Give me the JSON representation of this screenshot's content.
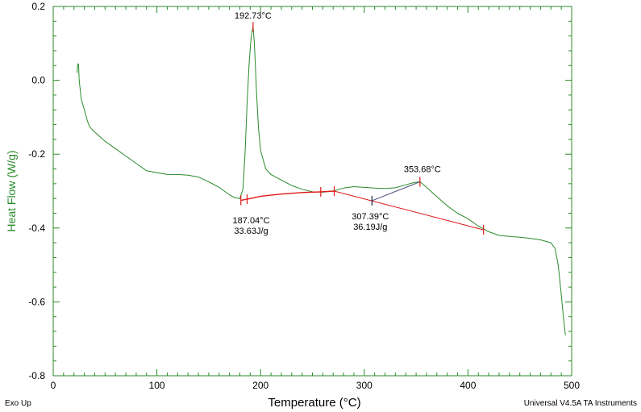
{
  "chart_data": {
    "type": "line",
    "title": "",
    "xlabel": "Temperature (°C)",
    "ylabel": "Heat Flow (W/g)",
    "xlim": [
      0,
      500
    ],
    "ylim": [
      -0.8,
      0.2
    ],
    "xticks": [
      0,
      100,
      200,
      300,
      400,
      500
    ],
    "yticks": [
      -0.8,
      -0.6,
      -0.4,
      -0.2,
      0.0,
      0.2
    ],
    "xtick_labels": [
      "0",
      "100",
      "200",
      "300",
      "400",
      "500"
    ],
    "ytick_labels": [
      "-0.8",
      "-0.6",
      "-0.4",
      "-0.2",
      "0.0",
      "0.2"
    ],
    "grid": false,
    "colors": {
      "curve": "#2a8a2a",
      "integration": "#e01818",
      "ylabel": "#2a8a2a",
      "marker": "#e01818"
    },
    "series": [
      {
        "name": "Heat Flow",
        "x": [
          23,
          23.5,
          24,
          24.5,
          25,
          27,
          30,
          33,
          35,
          38,
          42,
          50,
          60,
          70,
          80,
          90,
          100,
          110,
          120,
          130,
          140,
          150,
          160,
          170,
          175,
          180,
          183,
          185,
          187,
          189,
          191,
          192.73,
          194,
          196,
          198,
          200,
          205,
          210,
          220,
          230,
          240,
          250,
          260,
          270,
          280,
          290,
          300,
          310,
          320,
          330,
          340,
          345,
          350,
          353.68,
          356,
          360,
          370,
          380,
          390,
          400,
          410,
          415,
          420,
          430,
          440,
          450,
          460,
          470,
          480,
          484,
          487,
          490,
          492,
          494
        ],
        "y": [
          0.02,
          0.04,
          0.045,
          0.04,
          0.0,
          -0.05,
          -0.08,
          -0.11,
          -0.125,
          -0.135,
          -0.145,
          -0.165,
          -0.185,
          -0.205,
          -0.225,
          -0.245,
          -0.25,
          -0.255,
          -0.255,
          -0.257,
          -0.262,
          -0.275,
          -0.29,
          -0.31,
          -0.318,
          -0.32,
          -0.295,
          -0.2,
          -0.06,
          0.05,
          0.12,
          0.145,
          0.1,
          -0.03,
          -0.13,
          -0.19,
          -0.24,
          -0.255,
          -0.27,
          -0.285,
          -0.295,
          -0.302,
          -0.303,
          -0.3,
          -0.292,
          -0.288,
          -0.29,
          -0.292,
          -0.293,
          -0.291,
          -0.283,
          -0.279,
          -0.276,
          -0.275,
          -0.28,
          -0.29,
          -0.315,
          -0.34,
          -0.36,
          -0.375,
          -0.395,
          -0.402,
          -0.41,
          -0.42,
          -0.423,
          -0.425,
          -0.428,
          -0.432,
          -0.44,
          -0.455,
          -0.5,
          -0.58,
          -0.64,
          -0.69
        ]
      },
      {
        "name": "Integration Baseline 1",
        "x": [
          181,
          187,
          200,
          220,
          240,
          258,
          271
        ],
        "y": [
          -0.325,
          -0.322,
          -0.314,
          -0.308,
          -0.304,
          -0.302,
          -0.3
        ]
      },
      {
        "name": "Integration Baseline 2",
        "x": [
          271,
          415
        ],
        "y": [
          -0.3,
          -0.405
        ]
      }
    ],
    "vertex_line": {
      "x": [
        307.39,
        353.68
      ],
      "y": [
        -0.326,
        -0.275
      ]
    },
    "markers": [
      {
        "x": 181,
        "y": -0.325
      },
      {
        "x": 187,
        "y": -0.322
      },
      {
        "x": 192.73,
        "y": 0.145
      },
      {
        "x": 258,
        "y": -0.302
      },
      {
        "x": 271,
        "y": -0.3
      },
      {
        "x": 307.39,
        "y": -0.326
      },
      {
        "x": 353.68,
        "y": -0.275
      },
      {
        "x": 415,
        "y": -0.405
      }
    ],
    "annotations": [
      {
        "lines": [
          "192.73°C"
        ],
        "x": 192.73,
        "y": 0.145,
        "placement": "above"
      },
      {
        "lines": [
          "187.04°C",
          "33.63J/g"
        ],
        "x": 187.04,
        "y": -0.322,
        "placement": "below"
      },
      {
        "lines": [
          "307.39°C",
          "36.19J/g"
        ],
        "x": 307.39,
        "y": -0.326,
        "placement": "below"
      },
      {
        "lines": [
          "353.68°C"
        ],
        "x": 353.68,
        "y": -0.275,
        "placement": "above"
      }
    ]
  },
  "footer": {
    "left": "Exo Up",
    "right": "Universal V4.5A TA Instruments"
  }
}
